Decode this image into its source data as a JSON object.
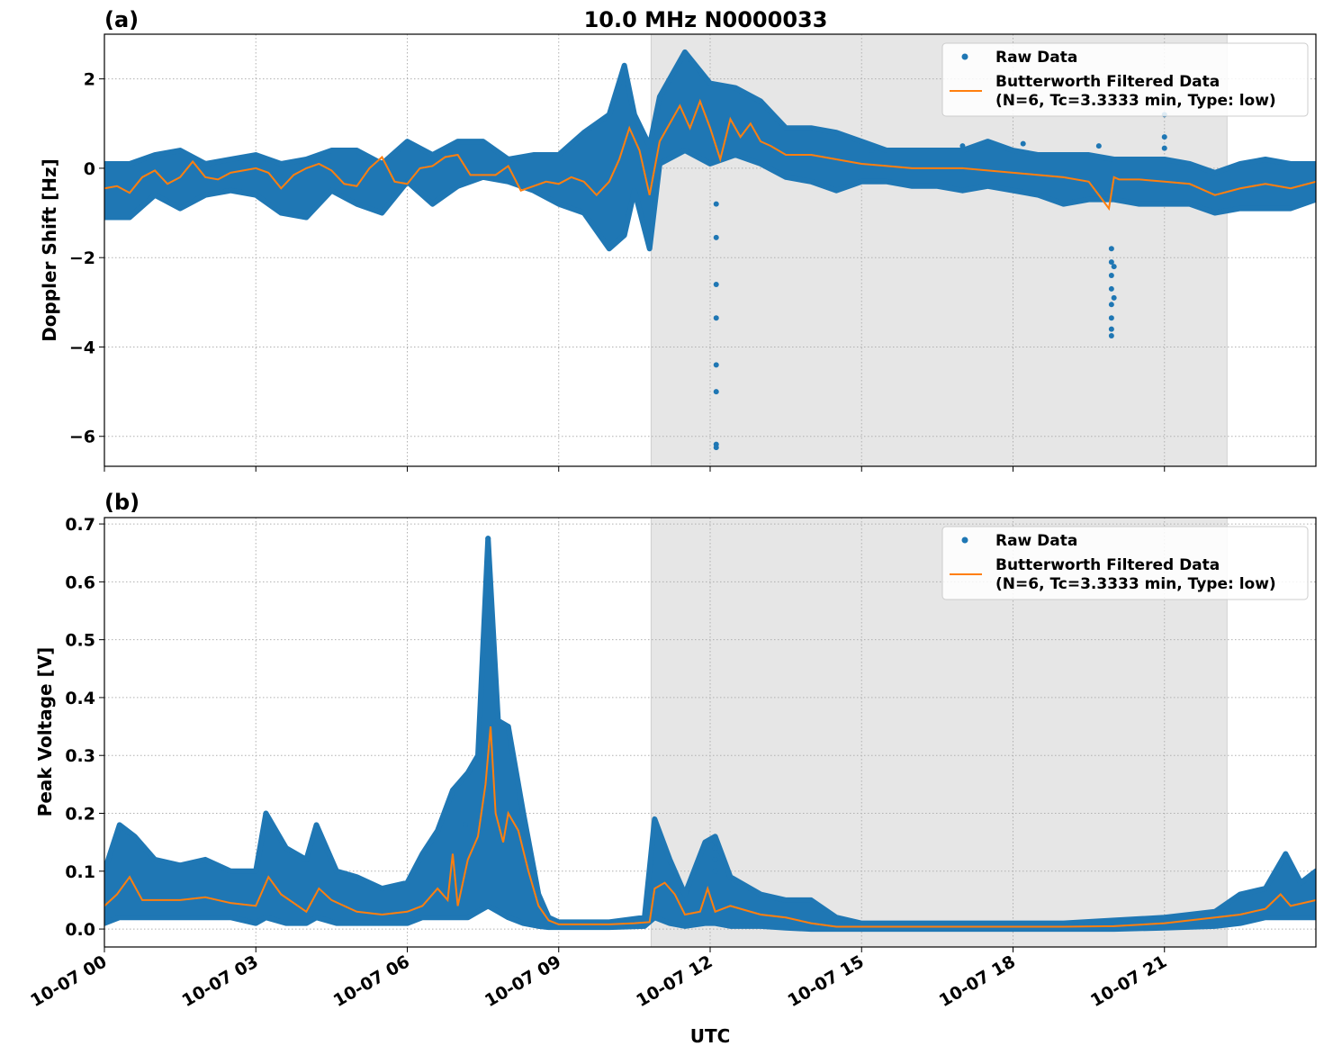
{
  "chart_data": [
    {
      "type": "scatter+line",
      "panel_label": "(a)",
      "title": "10.0 MHz N0000033",
      "xlabel": "",
      "ylabel": "Doppler Shift [Hz]",
      "xlim_hours": [
        0,
        24
      ],
      "ylim": [
        -6.67,
        3.0
      ],
      "yticks": [
        2,
        0,
        -2,
        -4,
        -6
      ],
      "ytick_labels": [
        "2",
        "0",
        "−2",
        "−4",
        "−6"
      ],
      "grid": true,
      "legend_position": "top-right",
      "shaded_region_hours": [
        10.83,
        22.24
      ],
      "series": [
        {
          "name": "Raw Data",
          "kind": "scatter",
          "color": "#1f77b4",
          "x": [
            0,
            0.5,
            1,
            1.5,
            2,
            2.5,
            3,
            3.5,
            4,
            4.5,
            5,
            5.5,
            6,
            6.5,
            7,
            7.5,
            8,
            8.5,
            9,
            9.5,
            10,
            10.3,
            10.5,
            10.8,
            11,
            11.5,
            12,
            12.5,
            13,
            13.5,
            14,
            14.5,
            15,
            15.5,
            16,
            16.5,
            17,
            17.5,
            18,
            18.5,
            19,
            19.5,
            20,
            20.5,
            21,
            21.5,
            22,
            22.5,
            23,
            23.5,
            24
          ],
          "min": [
            -1.1,
            -1.1,
            -0.6,
            -0.9,
            -0.6,
            -0.5,
            -0.6,
            -1.0,
            -1.1,
            -0.5,
            -0.8,
            -1.0,
            -0.3,
            -0.8,
            -0.4,
            -0.2,
            -0.3,
            -0.5,
            -0.8,
            -1.0,
            -1.8,
            -1.5,
            -0.5,
            -1.8,
            0.1,
            0.4,
            0.1,
            0.3,
            0.1,
            -0.2,
            -0.3,
            -0.5,
            -0.3,
            -0.3,
            -0.4,
            -0.4,
            -0.5,
            -0.4,
            -0.5,
            -0.6,
            -0.8,
            -0.7,
            -0.7,
            -0.8,
            -0.8,
            -0.8,
            -1.0,
            -0.9,
            -0.9,
            -0.9,
            -0.7
          ],
          "max": [
            0.1,
            0.1,
            0.3,
            0.4,
            0.1,
            0.2,
            0.3,
            0.1,
            0.2,
            0.4,
            0.4,
            0.1,
            0.6,
            0.3,
            0.6,
            0.6,
            0.2,
            0.3,
            0.3,
            0.8,
            1.2,
            2.3,
            1.2,
            0.5,
            1.6,
            2.6,
            1.9,
            1.8,
            1.5,
            0.9,
            0.9,
            0.8,
            0.6,
            0.4,
            0.4,
            0.4,
            0.4,
            0.6,
            0.4,
            0.3,
            0.3,
            0.3,
            0.2,
            0.2,
            0.2,
            0.1,
            -0.1,
            0.1,
            0.2,
            0.1,
            0.1
          ],
          "outliers": [
            [
              12.12,
              -0.8
            ],
            [
              12.12,
              -1.55
            ],
            [
              12.12,
              -2.6
            ],
            [
              12.12,
              -3.35
            ],
            [
              12.12,
              -4.4
            ],
            [
              12.12,
              -5.0
            ],
            [
              12.12,
              -6.18
            ],
            [
              12.12,
              -6.25
            ],
            [
              19.95,
              -1.8
            ],
            [
              19.95,
              -2.1
            ],
            [
              19.95,
              -2.4
            ],
            [
              19.95,
              -2.7
            ],
            [
              19.95,
              -3.05
            ],
            [
              19.95,
              -3.35
            ],
            [
              19.95,
              -3.6
            ],
            [
              19.95,
              -3.75
            ],
            [
              20.0,
              -2.2
            ],
            [
              20.0,
              -2.9
            ],
            [
              21.0,
              1.2
            ],
            [
              21.0,
              0.7
            ],
            [
              21.0,
              0.45
            ],
            [
              15.2,
              0.4
            ],
            [
              17.0,
              0.5
            ],
            [
              18.2,
              0.55
            ],
            [
              19.7,
              0.5
            ]
          ]
        },
        {
          "name": "Butterworth Filtered Data\n(N=6, Tc=3.3333 min, Type: low)",
          "kind": "line",
          "color": "#ff7f0e",
          "x": [
            0,
            0.25,
            0.5,
            0.75,
            1,
            1.25,
            1.5,
            1.75,
            2,
            2.25,
            2.5,
            3,
            3.25,
            3.5,
            3.75,
            4,
            4.25,
            4.5,
            4.75,
            5,
            5.25,
            5.5,
            5.75,
            6,
            6.25,
            6.5,
            6.75,
            7,
            7.25,
            7.5,
            7.75,
            8,
            8.25,
            8.5,
            8.75,
            9,
            9.25,
            9.5,
            9.75,
            10,
            10.2,
            10.4,
            10.6,
            10.8,
            11,
            11.2,
            11.4,
            11.6,
            11.8,
            12,
            12.2,
            12.4,
            12.6,
            12.8,
            13,
            13.2,
            13.5,
            14,
            14.5,
            15,
            15.5,
            16,
            16.5,
            17,
            17.5,
            18,
            18.5,
            19,
            19.5,
            19.9,
            20.0,
            20.1,
            20.5,
            21,
            21.5,
            22,
            22.5,
            23,
            23.5,
            24
          ],
          "values": [
            -0.45,
            -0.4,
            -0.55,
            -0.2,
            -0.05,
            -0.35,
            -0.2,
            0.15,
            -0.2,
            -0.25,
            -0.1,
            0.0,
            -0.1,
            -0.45,
            -0.15,
            0.0,
            0.1,
            -0.05,
            -0.35,
            -0.4,
            0.0,
            0.25,
            -0.3,
            -0.35,
            0.0,
            0.05,
            0.25,
            0.3,
            -0.15,
            -0.15,
            -0.15,
            0.05,
            -0.5,
            -0.4,
            -0.3,
            -0.35,
            -0.2,
            -0.3,
            -0.6,
            -0.3,
            0.2,
            0.9,
            0.4,
            -0.6,
            0.6,
            1.0,
            1.4,
            0.9,
            1.5,
            0.9,
            0.2,
            1.1,
            0.7,
            1.0,
            0.6,
            0.5,
            0.3,
            0.3,
            0.2,
            0.1,
            0.05,
            0.0,
            0.0,
            0.0,
            -0.05,
            -0.1,
            -0.15,
            -0.2,
            -0.3,
            -0.9,
            -0.2,
            -0.25,
            -0.25,
            -0.3,
            -0.35,
            -0.6,
            -0.45,
            -0.35,
            -0.45,
            -0.3
          ]
        }
      ]
    },
    {
      "type": "scatter+line",
      "panel_label": "(b)",
      "xlabel": "UTC",
      "ylabel": "Peak Voltage [V]",
      "xlim_hours": [
        0,
        24
      ],
      "ylim": [
        -0.031,
        0.711
      ],
      "yticks": [
        0.0,
        0.1,
        0.2,
        0.3,
        0.4,
        0.5,
        0.6,
        0.7
      ],
      "ytick_labels": [
        "0.0",
        "0.1",
        "0.2",
        "0.3",
        "0.4",
        "0.5",
        "0.6",
        "0.7"
      ],
      "xtick_labels": [
        "10-07 00",
        "10-07 03",
        "10-07 06",
        "10-07 09",
        "10-07 12",
        "10-07 15",
        "10-07 18",
        "10-07 21"
      ],
      "xticks_hours": [
        0,
        3,
        6,
        9,
        12,
        15,
        18,
        21
      ],
      "grid": true,
      "legend_position": "top-right",
      "shaded_region_hours": [
        10.83,
        22.24
      ],
      "series": [
        {
          "name": "Raw Data",
          "kind": "scatter",
          "color": "#1f77b4",
          "x": [
            0,
            0.3,
            0.6,
            1,
            1.5,
            2,
            2.5,
            3,
            3.2,
            3.6,
            4,
            4.2,
            4.6,
            5,
            5.5,
            6,
            6.3,
            6.6,
            6.9,
            7.2,
            7.4,
            7.6,
            7.8,
            8.0,
            8.3,
            8.6,
            8.8,
            9,
            10,
            10.7,
            10.9,
            11.2,
            11.5,
            11.9,
            12.1,
            12.4,
            13,
            13.5,
            14,
            14.5,
            15,
            17,
            19,
            20,
            21,
            22,
            22.5,
            23,
            23.4,
            23.7,
            24
          ],
          "min": [
            0.01,
            0.02,
            0.02,
            0.02,
            0.02,
            0.02,
            0.02,
            0.01,
            0.02,
            0.01,
            0.01,
            0.02,
            0.01,
            0.01,
            0.01,
            0.01,
            0.02,
            0.02,
            0.02,
            0.02,
            0.03,
            0.04,
            0.03,
            0.02,
            0.01,
            0.005,
            0.003,
            0.003,
            0.003,
            0.005,
            0.02,
            0.01,
            0.005,
            0.01,
            0.01,
            0.005,
            0.005,
            0.002,
            0.0,
            0.0,
            0.0,
            0.0,
            0.0,
            0.0,
            0.002,
            0.005,
            0.01,
            0.02,
            0.02,
            0.02,
            0.02
          ],
          "max": [
            0.1,
            0.18,
            0.16,
            0.12,
            0.11,
            0.12,
            0.1,
            0.1,
            0.2,
            0.14,
            0.12,
            0.18,
            0.1,
            0.09,
            0.07,
            0.08,
            0.13,
            0.17,
            0.24,
            0.27,
            0.3,
            0.675,
            0.36,
            0.35,
            0.2,
            0.06,
            0.02,
            0.012,
            0.012,
            0.02,
            0.19,
            0.12,
            0.06,
            0.15,
            0.16,
            0.09,
            0.06,
            0.05,
            0.05,
            0.02,
            0.01,
            0.01,
            0.01,
            0.015,
            0.02,
            0.03,
            0.06,
            0.07,
            0.13,
            0.08,
            0.1
          ],
          "outliers": [
            [
              7.6,
              0.675
            ],
            [
              7.6,
              0.64
            ],
            [
              7.6,
              0.62
            ],
            [
              7.6,
              0.6
            ],
            [
              7.6,
              0.57
            ],
            [
              8.0,
              0.35
            ],
            [
              7.15,
              0.18
            ],
            [
              12.1,
              0.15
            ],
            [
              12.1,
              0.14
            ],
            [
              12.1,
              0.12
            ],
            [
              12.1,
              0.1
            ]
          ]
        },
        {
          "name": "Butterworth Filtered Data\n(N=6, Tc=3.3333 min, Type: low)",
          "kind": "line",
          "color": "#ff7f0e",
          "x": [
            0,
            0.25,
            0.5,
            0.75,
            1,
            1.5,
            2,
            2.5,
            3,
            3.25,
            3.5,
            4,
            4.25,
            4.5,
            5,
            5.5,
            6,
            6.3,
            6.6,
            6.8,
            6.9,
            7.0,
            7.2,
            7.4,
            7.55,
            7.65,
            7.75,
            7.9,
            8.0,
            8.2,
            8.4,
            8.6,
            8.8,
            9,
            9.5,
            10,
            10.5,
            10.8,
            10.9,
            11.1,
            11.3,
            11.5,
            11.8,
            11.95,
            12.1,
            12.4,
            13,
            13.5,
            14,
            14.5,
            15,
            16,
            17,
            18,
            19,
            20,
            21,
            22,
            22.5,
            23,
            23.3,
            23.5,
            24
          ],
          "values": [
            0.04,
            0.06,
            0.09,
            0.05,
            0.05,
            0.05,
            0.055,
            0.045,
            0.04,
            0.09,
            0.06,
            0.03,
            0.07,
            0.05,
            0.03,
            0.025,
            0.03,
            0.04,
            0.07,
            0.05,
            0.13,
            0.04,
            0.12,
            0.16,
            0.25,
            0.35,
            0.2,
            0.15,
            0.2,
            0.17,
            0.1,
            0.04,
            0.015,
            0.008,
            0.008,
            0.008,
            0.01,
            0.012,
            0.07,
            0.08,
            0.06,
            0.025,
            0.03,
            0.07,
            0.03,
            0.04,
            0.025,
            0.02,
            0.01,
            0.004,
            0.004,
            0.004,
            0.004,
            0.004,
            0.004,
            0.005,
            0.01,
            0.02,
            0.025,
            0.035,
            0.06,
            0.04,
            0.05
          ]
        }
      ]
    }
  ],
  "legend": {
    "raw_label": "Raw Data",
    "filtered_label_line1": "Butterworth Filtered Data",
    "filtered_label_line2": "(N=6, Tc=3.3333 min, Type: low)"
  }
}
